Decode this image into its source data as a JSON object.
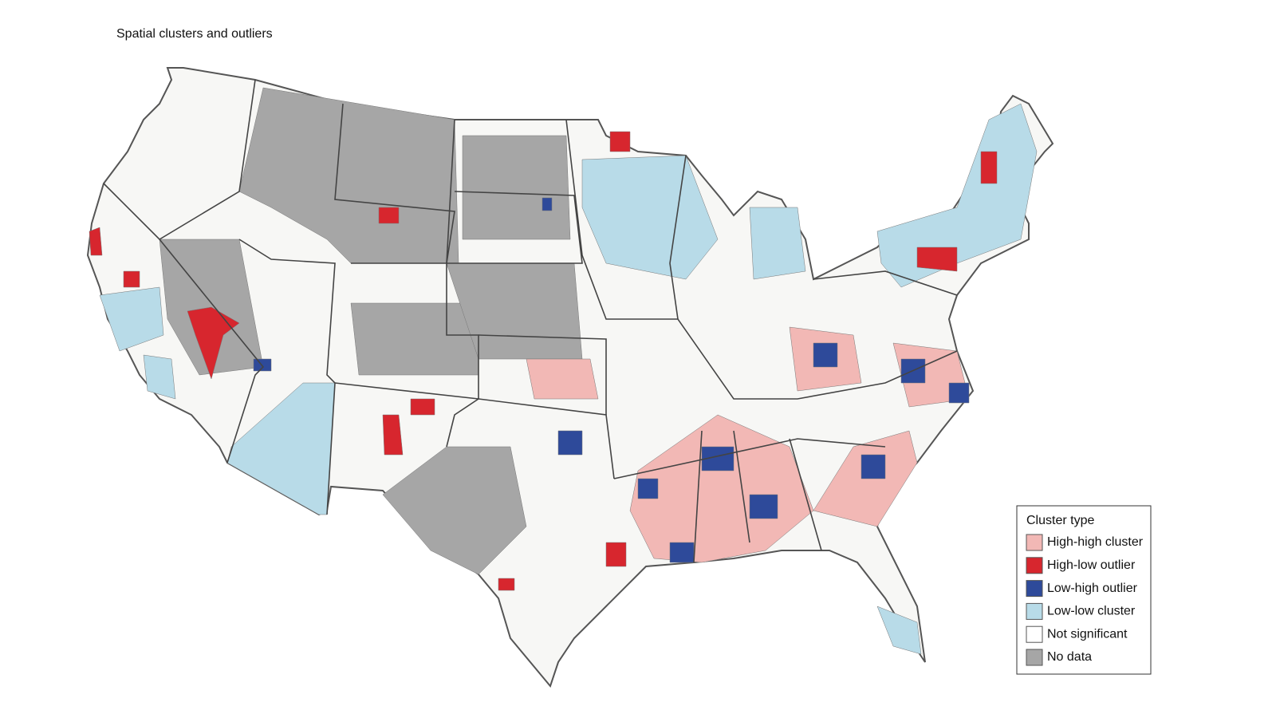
{
  "title": "Spatial clusters and outliers",
  "legend": {
    "title": "Cluster type",
    "items": [
      {
        "label": "High-high cluster",
        "color": "#f2b8b5"
      },
      {
        "label": "High-low outlier",
        "color": "#d7262e"
      },
      {
        "label": "Low-high outlier",
        "color": "#2e4a9a"
      },
      {
        "label": "Low-low cluster",
        "color": "#b8dbe8"
      },
      {
        "label": "Not significant",
        "color": "#ffffff"
      },
      {
        "label": "No data",
        "color": "#a6a6a6"
      }
    ]
  }
}
